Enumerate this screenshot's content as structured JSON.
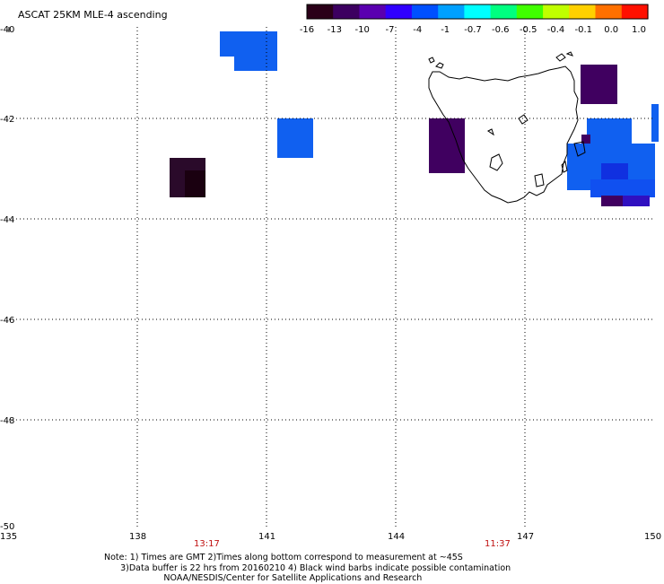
{
  "title": "ASCAT 25KM MLE-4 ascending",
  "colorbar": {
    "labels": [
      "-16",
      "-13",
      "-10",
      "-7",
      "-4",
      "-1",
      "-0.7",
      "-0.6",
      "-0.5",
      "-0.4",
      "-0.1",
      "0.0",
      "1.0"
    ],
    "colors": [
      "#2a0018",
      "#3c0060",
      "#5a00b0",
      "#3000ff",
      "#0050ff",
      "#00a0ff",
      "#00ffff",
      "#00ff80",
      "#40ff00",
      "#c0ff00",
      "#ffd000",
      "#ff7000",
      "#ff1000"
    ]
  },
  "axes": {
    "lat_labels": [
      "-40",
      "-42",
      "-44",
      "-46",
      "-48",
      "-50"
    ],
    "lon_labels": [
      "135",
      "138",
      "141",
      "144",
      "147",
      "150"
    ]
  },
  "times": {
    "left": "13:17",
    "right": "11:37"
  },
  "notes": {
    "line1": "Note: 1) Times are GMT 2)Times along bottom correspond to measurement at ~45S",
    "line2": "      3)Data buffer is 22 hrs from 20160210 4) Black wind barbs indicate possible contamination",
    "line3": "                      NOAA/NESDIS/Center for Satellite Applications and Research"
  },
  "data_cells": [
    {
      "lon": 139.6,
      "lat": -43.3,
      "color": "#2a0a2a"
    },
    {
      "lon": 140.3,
      "lat": -40.3,
      "color": "#1060f0"
    },
    {
      "lon": 141.6,
      "lat": -42.4,
      "color": "#1060f0"
    },
    {
      "lon": 145.7,
      "lat": -42.5,
      "color": "#400060"
    },
    {
      "lon": 149.3,
      "lat": -41.1,
      "color": "#400060"
    },
    {
      "lon": 149.3,
      "lat": -43.0,
      "color": "#1050f0"
    }
  ]
}
